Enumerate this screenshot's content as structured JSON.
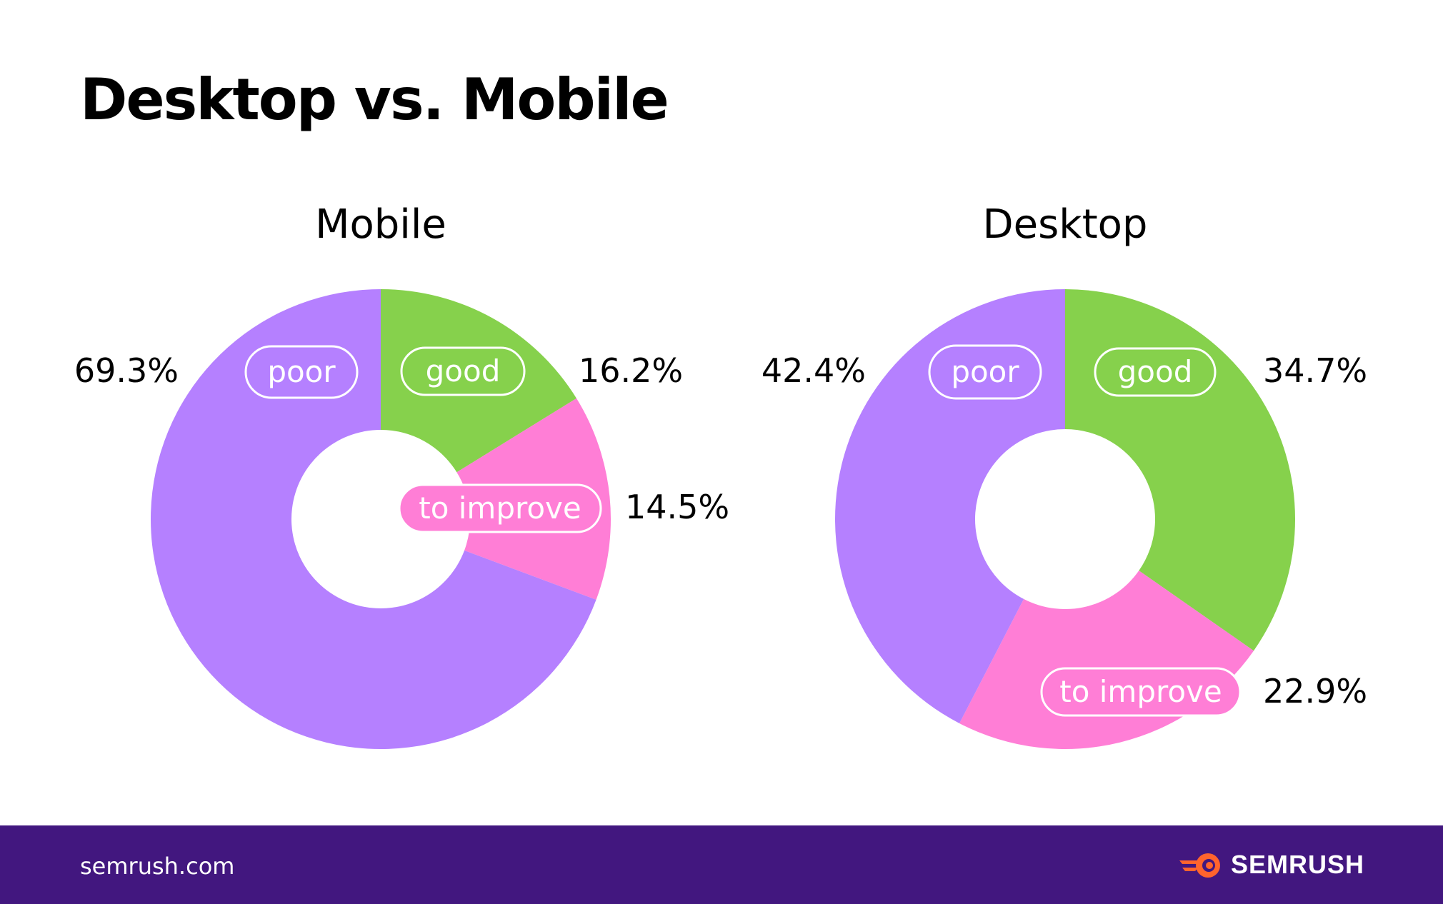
{
  "title": "Desktop vs. Mobile",
  "colors": {
    "good": "#86d14c",
    "to_improve": "#ff7ed6",
    "poor": "#b580ff",
    "footer": "#42177f",
    "logo_accent": "#ff642d"
  },
  "chart_data": [
    {
      "type": "pie",
      "title": "Mobile",
      "donut": true,
      "slices": [
        {
          "label": "good",
          "value": 16.2,
          "value_label": "16.2%"
        },
        {
          "label": "to improve",
          "value": 14.5,
          "value_label": "14.5%"
        },
        {
          "label": "poor",
          "value": 69.3,
          "value_label": "69.3%"
        }
      ]
    },
    {
      "type": "pie",
      "title": "Desktop",
      "donut": true,
      "slices": [
        {
          "label": "good",
          "value": 34.7,
          "value_label": "34.7%"
        },
        {
          "label": "to improve",
          "value": 22.9,
          "value_label": "22.9%"
        },
        {
          "label": "poor",
          "value": 42.4,
          "value_label": "42.4%"
        }
      ]
    }
  ],
  "footer": {
    "url": "semrush.com",
    "logo_text": "SEMRUSH",
    "logo_icon": "semrush-flame-icon"
  }
}
